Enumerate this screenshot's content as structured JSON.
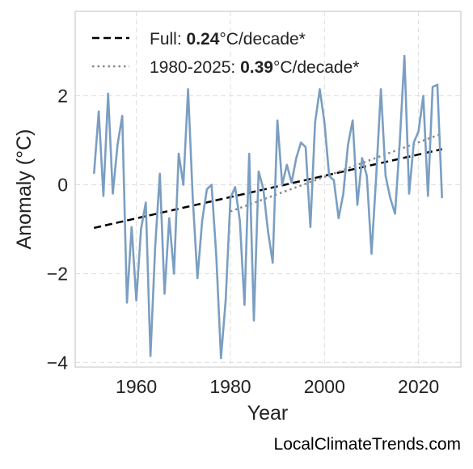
{
  "chart_data": {
    "type": "line",
    "xlabel": "Year",
    "ylabel": "Anomaly (°C)",
    "xlim": [
      1947,
      2029
    ],
    "ylim": [
      -4.1,
      3.9
    ],
    "xticks": [
      1960,
      1980,
      2000,
      2020
    ],
    "yticks": [
      -4,
      -2,
      0,
      2
    ],
    "ytick_labels": [
      "−4",
      "−2",
      "0",
      "2"
    ],
    "grid": true,
    "legend_position": "top-left",
    "colors": {
      "series": "#7b9ec2",
      "trend_full": "#000000",
      "trend_recent": "#888888"
    },
    "series": [
      {
        "x": [
          1951,
          1952,
          1953,
          1954,
          1955,
          1956,
          1957,
          1958,
          1959,
          1960,
          1961,
          1962,
          1963,
          1964,
          1965,
          1966,
          1967,
          1968,
          1969,
          1970,
          1971,
          1972,
          1973,
          1974,
          1975,
          1976,
          1977,
          1978,
          1979,
          1980,
          1981,
          1982,
          1983,
          1984,
          1985,
          1986,
          1987,
          1988,
          1989,
          1990,
          1991,
          1992,
          1993,
          1994,
          1995,
          1996,
          1997,
          1998,
          1999,
          2000,
          2001,
          2002,
          2003,
          2004,
          2005,
          2006,
          2007,
          2008,
          2009,
          2010,
          2011,
          2012,
          2013,
          2014,
          2015,
          2016,
          2017,
          2018,
          2019,
          2020,
          2021,
          2022,
          2023,
          2024,
          2025
        ],
        "values": [
          0.25,
          1.65,
          -0.25,
          2.05,
          -0.2,
          0.9,
          1.55,
          -2.65,
          -0.95,
          -2.6,
          -1.0,
          -0.4,
          -3.85,
          -1.4,
          0.25,
          -2.45,
          -0.75,
          -2.0,
          0.7,
          0.0,
          2.15,
          -0.3,
          -2.1,
          -0.8,
          -0.1,
          0.0,
          -1.6,
          -3.9,
          -2.6,
          -0.3,
          -0.05,
          -0.8,
          -2.7,
          0.7,
          -3.05,
          0.3,
          -0.1,
          -1.05,
          -1.75,
          1.45,
          0.0,
          0.45,
          0.05,
          0.6,
          0.95,
          0.85,
          -0.95,
          1.4,
          2.15,
          1.4,
          0.2,
          0.1,
          -0.75,
          -0.2,
          0.9,
          1.45,
          -0.45,
          0.6,
          0.2,
          -1.55,
          0.2,
          2.15,
          0.2,
          -0.3,
          -0.65,
          0.95,
          2.9,
          -0.2,
          0.95,
          1.2,
          2.0,
          -0.25,
          2.2,
          2.25,
          -0.3
        ]
      }
    ],
    "trend_lines": [
      {
        "label_prefix": "Full: ",
        "label_value": "0.24",
        "label_suffix": "°C/decade*",
        "style": "dashed",
        "x": [
          1951,
          2025
        ],
        "y": [
          -0.97,
          0.8
        ]
      },
      {
        "label_prefix": "1980-2025: ",
        "label_value": "0.39",
        "label_suffix": "°C/decade*",
        "style": "dotted",
        "x": [
          1980,
          2025
        ],
        "y": [
          -0.6,
          1.15
        ]
      }
    ]
  },
  "watermark": "LocalClimateTrends.com"
}
